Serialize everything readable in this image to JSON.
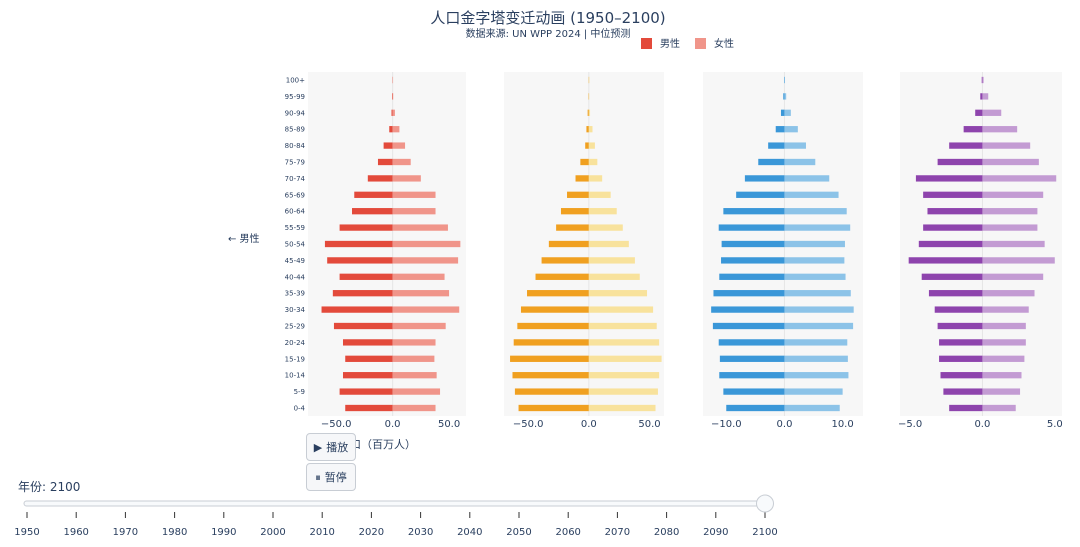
{
  "title": "人口金字塔变迁动画 (1950–2100)",
  "subtitle": "数据来源: UN WPP 2024 | 中位预测",
  "legend": {
    "male": "男性",
    "female": "女性"
  },
  "side_label": "← 男性",
  "xaxis_title": "口（百万人）",
  "controls": {
    "play_icon": "play-icon",
    "play_label": "播放",
    "pause_icon": "pause-icon",
    "pause_label": "暂停"
  },
  "slider": {
    "label": "年份: 2100",
    "ticks": [
      "1950",
      "1960",
      "1970",
      "1980",
      "1990",
      "2000",
      "2010",
      "2020",
      "2030",
      "2040",
      "2050",
      "2060",
      "2070",
      "2080",
      "2090",
      "2100"
    ],
    "current_index": 15,
    "track_color": "#c8cdd4"
  },
  "chart_data": [
    {
      "type": "bar",
      "orientation": "horizontal",
      "age_groups": [
        "0-4",
        "5-9",
        "10-14",
        "15-19",
        "20-24",
        "25-29",
        "30-34",
        "35-39",
        "40-44",
        "45-49",
        "50-54",
        "55-59",
        "60-64",
        "65-69",
        "70-74",
        "75-79",
        "80-84",
        "85-89",
        "90-94",
        "95-99",
        "100+"
      ],
      "xlim": [
        -75,
        65
      ],
      "xticks": [
        -50,
        0,
        50
      ],
      "xtick_labels": [
        "−50.0",
        "0.0",
        "50.0"
      ],
      "colors": {
        "male": "#e34a3b",
        "female": "#f0958a"
      },
      "series": [
        {
          "name": "男性",
          "values": [
            -42,
            -47,
            -44,
            -42,
            -44,
            -52,
            -63,
            -53,
            -47,
            -58,
            -60,
            -47,
            -36,
            -34,
            -22,
            -13,
            -8,
            -3,
            -1,
            -0.5,
            -0.1
          ]
        },
        {
          "name": "女性",
          "values": [
            38,
            42,
            39,
            37,
            38,
            47,
            59,
            50,
            46,
            58,
            60,
            49,
            38,
            38,
            25,
            16,
            11,
            6,
            2,
            0.5,
            0.1
          ]
        }
      ]
    },
    {
      "type": "bar",
      "orientation": "horizontal",
      "age_groups": [
        "0-4",
        "5-9",
        "10-14",
        "15-19",
        "20-24",
        "25-29",
        "30-34",
        "35-39",
        "40-44",
        "45-49",
        "50-54",
        "55-59",
        "60-64",
        "65-69",
        "70-74",
        "75-79",
        "80-84",
        "85-89",
        "90-94",
        "95-99",
        "100+"
      ],
      "xlim": [
        -70,
        62
      ],
      "xticks": [
        -50,
        0,
        50
      ],
      "xtick_labels": [
        "−50.0",
        "0.0",
        "50.0"
      ],
      "colors": {
        "male": "#f0a020",
        "female": "#f8e29c"
      },
      "series": [
        {
          "name": "男性",
          "values": [
            -58,
            -61,
            -63,
            -65,
            -62,
            -59,
            -56,
            -51,
            -44,
            -39,
            -33,
            -27,
            -23,
            -18,
            -11,
            -7,
            -3,
            -2,
            -1,
            -0.3,
            -0.1
          ]
        },
        {
          "name": "女性",
          "values": [
            55,
            57,
            58,
            60,
            58,
            56,
            53,
            48,
            42,
            38,
            33,
            28,
            23,
            18,
            11,
            7,
            5,
            3,
            1,
            0.3,
            0.1
          ]
        }
      ]
    },
    {
      "type": "bar",
      "orientation": "horizontal",
      "age_groups": [
        "0-4",
        "5-9",
        "10-14",
        "15-19",
        "20-24",
        "25-29",
        "30-34",
        "35-39",
        "40-44",
        "45-49",
        "50-54",
        "55-59",
        "60-64",
        "65-69",
        "70-74",
        "75-79",
        "80-84",
        "85-89",
        "90-94",
        "95-99",
        "100+"
      ],
      "xlim": [
        -14,
        13.5
      ],
      "xticks": [
        -10,
        0,
        10
      ],
      "xtick_labels": [
        "−10.0",
        "0.0",
        "10.0"
      ],
      "colors": {
        "male": "#3a97d8",
        "female": "#8cc3e8"
      },
      "series": [
        {
          "name": "男性",
          "values": [
            -10.0,
            -10.5,
            -11.2,
            -11.1,
            -11.3,
            -12.3,
            -12.6,
            -12.2,
            -11.2,
            -10.9,
            -10.8,
            -11.3,
            -10.5,
            -8.3,
            -6.8,
            -4.5,
            -2.8,
            -1.5,
            -0.6,
            -0.2,
            -0.05
          ]
        },
        {
          "name": "女性",
          "values": [
            9.5,
            10.0,
            11.0,
            10.9,
            10.8,
            11.8,
            11.9,
            11.4,
            10.5,
            10.3,
            10.4,
            11.3,
            10.7,
            9.3,
            7.7,
            5.3,
            3.7,
            2.3,
            1.1,
            0.3,
            0.08
          ]
        }
      ]
    },
    {
      "type": "bar",
      "orientation": "horizontal",
      "age_groups": [
        "0-4",
        "5-9",
        "10-14",
        "15-19",
        "20-24",
        "25-29",
        "30-34",
        "35-39",
        "40-44",
        "45-49",
        "50-54",
        "55-59",
        "60-64",
        "65-69",
        "70-74",
        "75-79",
        "80-84",
        "85-89",
        "90-94",
        "95-99",
        "100+"
      ],
      "xlim": [
        -5.7,
        5.5
      ],
      "xticks": [
        -5,
        0,
        5
      ],
      "xtick_labels": [
        "−5.0",
        "0.0",
        "5.0"
      ],
      "colors": {
        "male": "#8e44ad",
        "female": "#c39bd3"
      },
      "series": [
        {
          "name": "男性",
          "values": [
            -2.3,
            -2.7,
            -2.9,
            -3.0,
            -3.0,
            -3.1,
            -3.3,
            -3.7,
            -4.2,
            -5.1,
            -4.4,
            -4.1,
            -3.8,
            -4.1,
            -4.6,
            -3.1,
            -2.3,
            -1.3,
            -0.5,
            -0.15,
            -0.05
          ]
        },
        {
          "name": "女性",
          "values": [
            2.3,
            2.6,
            2.7,
            2.9,
            3.0,
            3.0,
            3.2,
            3.6,
            4.2,
            5.0,
            4.3,
            3.8,
            3.8,
            4.2,
            5.1,
            3.9,
            3.3,
            2.4,
            1.3,
            0.4,
            0.08
          ]
        }
      ]
    }
  ]
}
